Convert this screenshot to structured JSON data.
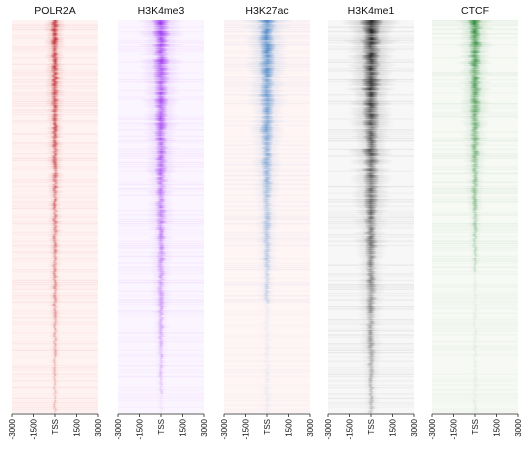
{
  "chart_data": {
    "type": "heatmap",
    "description_free": true,
    "x_ticks": [
      "-3000",
      "-1500",
      "TSS",
      "1500",
      "3000"
    ],
    "x_tick_values": [
      -3000,
      -1500,
      0,
      1500,
      3000
    ],
    "xlim": [
      -3000,
      3000
    ],
    "rows_sorted_by_signal": true,
    "panels": [
      {
        "name": "POLR2A",
        "color": "#c0272d",
        "signal_extent": 1.0,
        "peak_width_bp": [
          700,
          250
        ],
        "background_tint": "#fff3f1"
      },
      {
        "name": "H3K4me3",
        "color": "#9b30f0",
        "signal_extent": 0.95,
        "peak_width_bp": [
          1400,
          350
        ],
        "background_tint": "#fbf5ff"
      },
      {
        "name": "H3K27ac",
        "color": "#4a86c8",
        "signal_extent": 0.72,
        "peak_width_bp": [
          1500,
          500
        ],
        "background_tint": "#fff5f5"
      },
      {
        "name": "H3K4me1",
        "color": "#1a1a1a",
        "signal_extent": 1.0,
        "peak_width_bp": [
          1700,
          500
        ],
        "background_tint": "#f7f7f7"
      },
      {
        "name": "CTCF",
        "color": "#2e8b3a",
        "signal_extent": 0.64,
        "peak_width_bp": [
          1200,
          300
        ],
        "background_tint": "#f6f9f4"
      }
    ]
  }
}
